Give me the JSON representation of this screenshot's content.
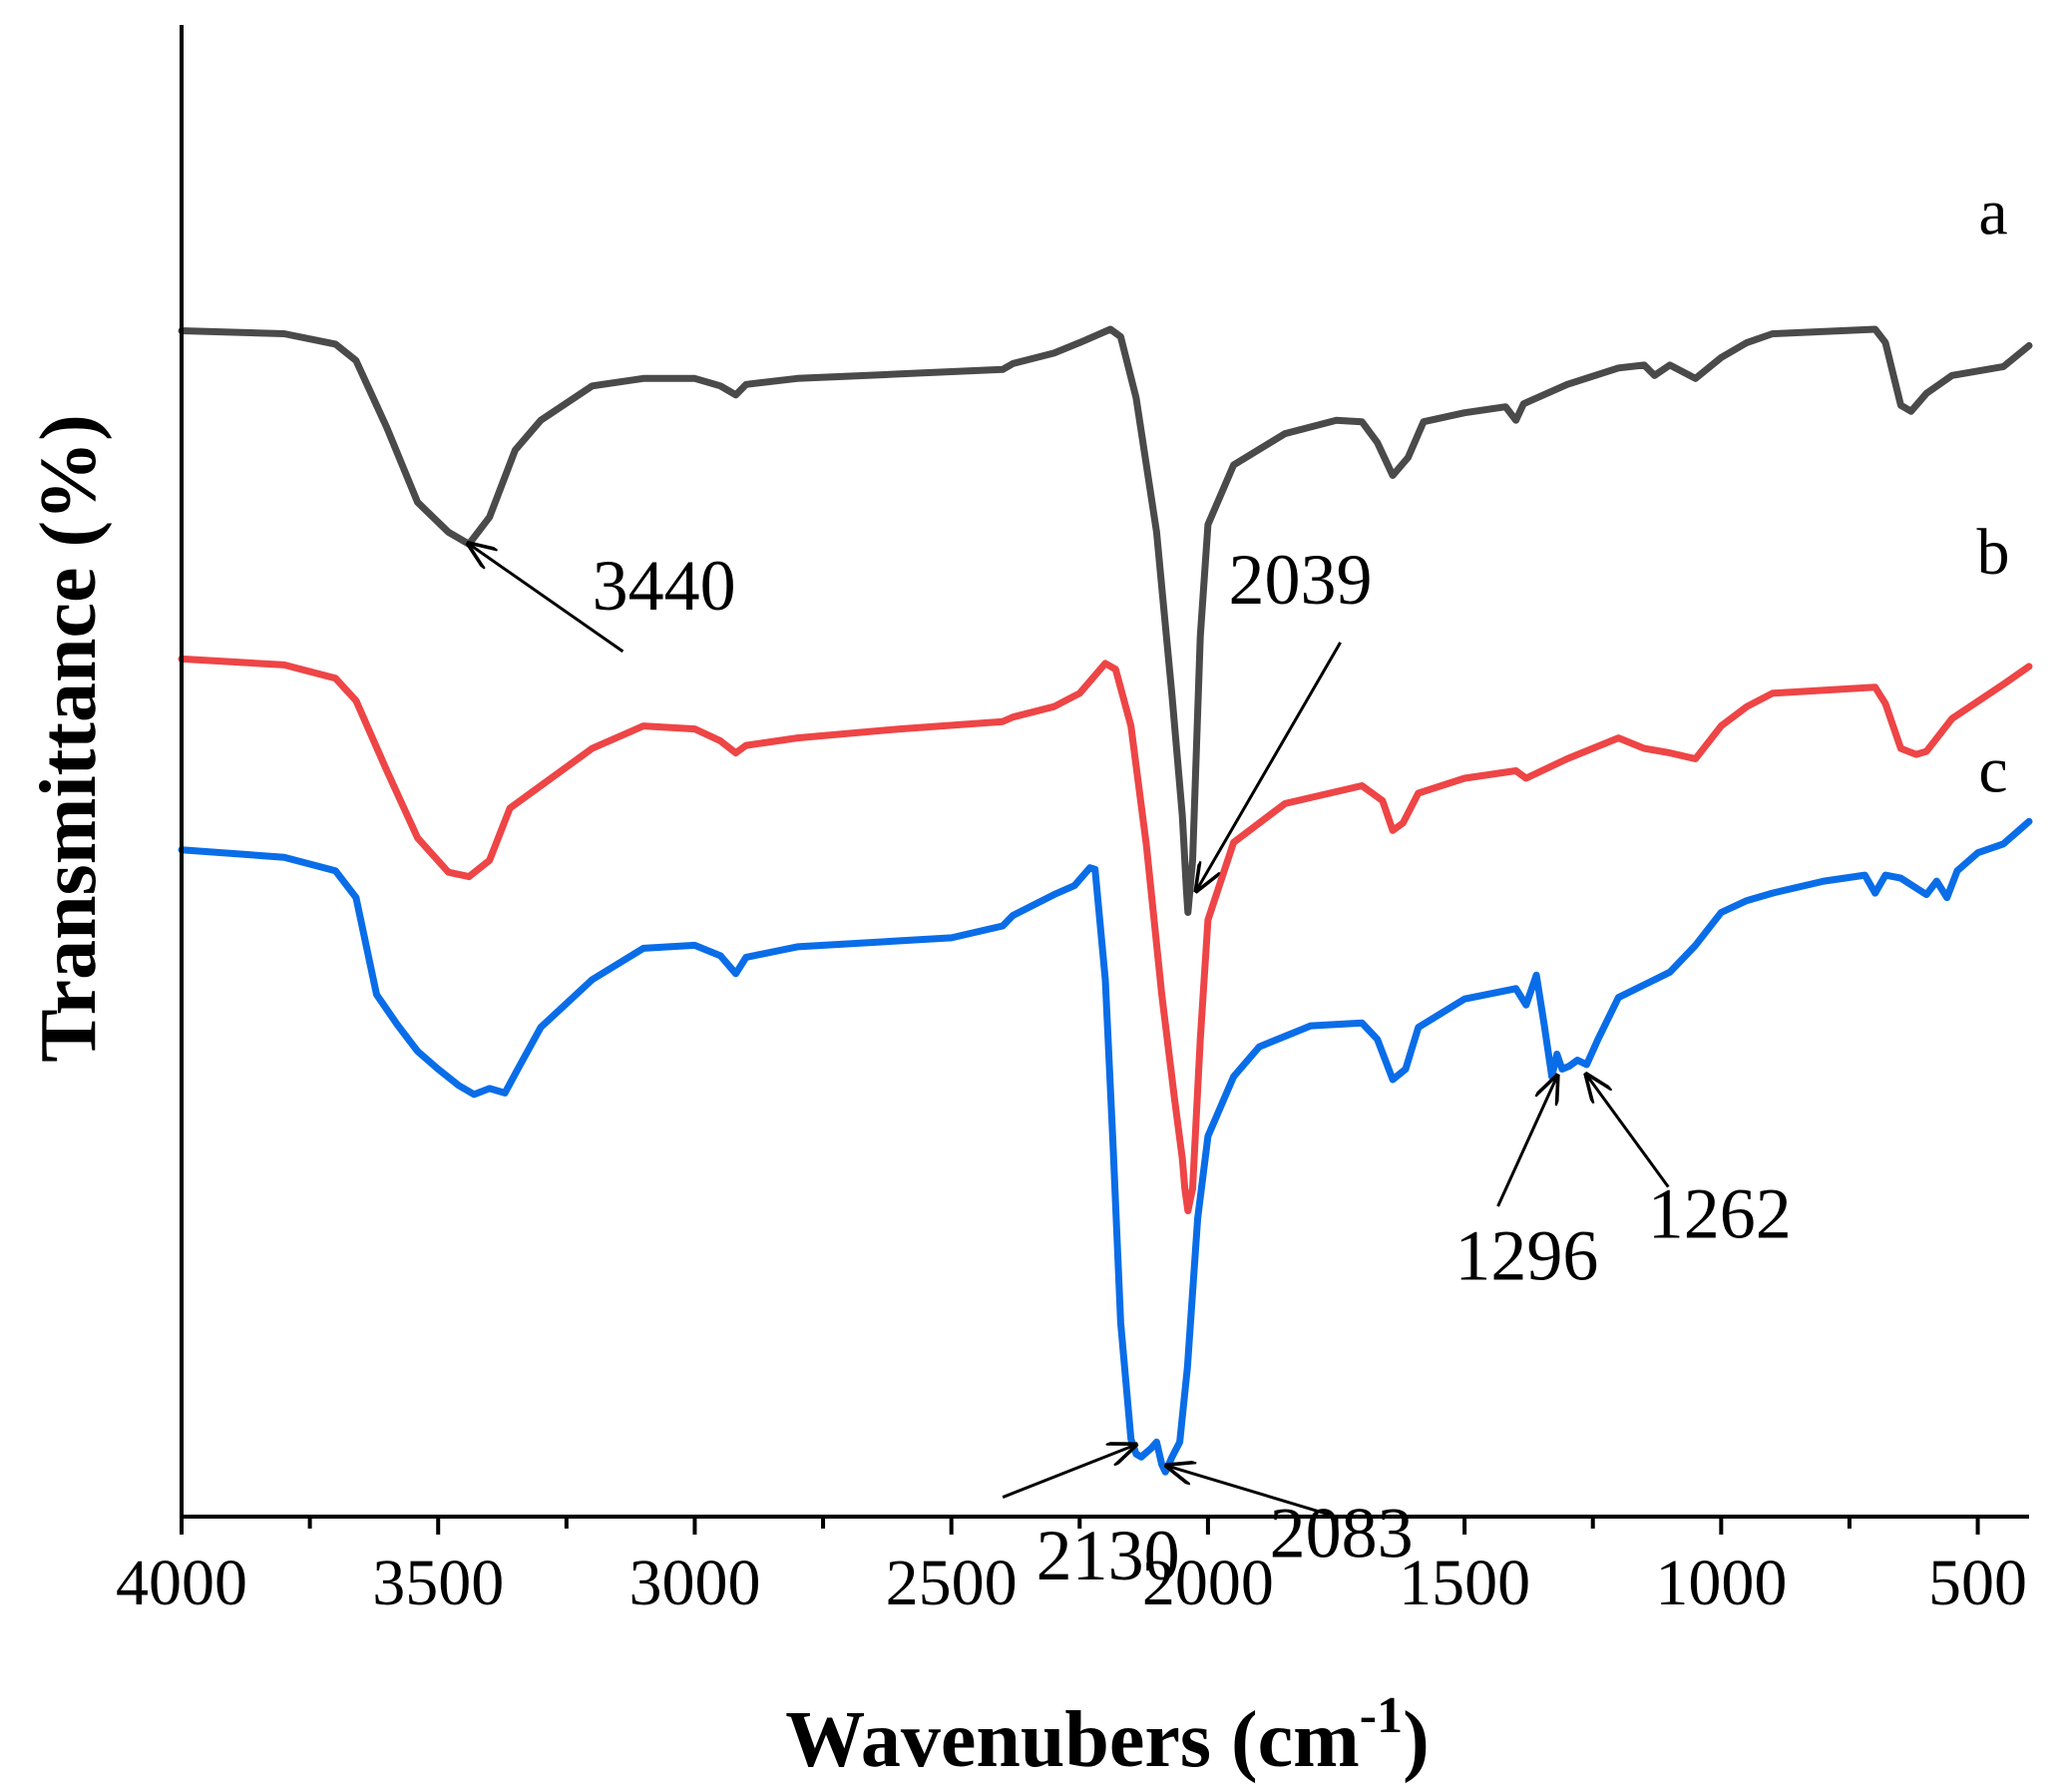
{
  "chart_data": {
    "type": "line",
    "title": "",
    "xlabel": "Wavenubers (cm",
    "xlabel_sup": "-1",
    "xlabel_end": ")",
    "ylabel": "Transmittance (%)",
    "xlim": [
      4000,
      400
    ],
    "ylim": [
      0,
      100
    ],
    "y_ticks_shown": false,
    "xticks": [
      {
        "value": 4000,
        "label": "4000"
      },
      {
        "value": 3500,
        "label": "3500"
      },
      {
        "value": 3000,
        "label": "3000"
      },
      {
        "value": 2500,
        "label": "2500"
      },
      {
        "value": 2000,
        "label": "2000"
      },
      {
        "value": 1500,
        "label": "1500"
      },
      {
        "value": 1000,
        "label": "1000"
      },
      {
        "value": 500,
        "label": "500"
      }
    ],
    "series": [
      {
        "name": "a",
        "color": "#4a4a4a",
        "points": [
          [
            4000,
            79.5
          ],
          [
            3800,
            79.3
          ],
          [
            3700,
            78.6
          ],
          [
            3660,
            77.5
          ],
          [
            3600,
            73
          ],
          [
            3540,
            68
          ],
          [
            3480,
            66
          ],
          [
            3440,
            65.2
          ],
          [
            3400,
            67
          ],
          [
            3350,
            71.5
          ],
          [
            3300,
            73.5
          ],
          [
            3200,
            75.8
          ],
          [
            3100,
            76.3
          ],
          [
            3000,
            76.3
          ],
          [
            2950,
            75.8
          ],
          [
            2920,
            75.2
          ],
          [
            2900,
            75.9
          ],
          [
            2800,
            76.3
          ],
          [
            2600,
            76.6
          ],
          [
            2400,
            76.9
          ],
          [
            2380,
            77.3
          ],
          [
            2300,
            78
          ],
          [
            2250,
            78.7
          ],
          [
            2190,
            79.6
          ],
          [
            2170,
            79.1
          ],
          [
            2140,
            75
          ],
          [
            2100,
            66
          ],
          [
            2070,
            55
          ],
          [
            2050,
            47
          ],
          [
            2042,
            42
          ],
          [
            2039,
            40.5
          ],
          [
            2030,
            44
          ],
          [
            2015,
            59
          ],
          [
            2000,
            66.5
          ],
          [
            1950,
            70.5
          ],
          [
            1850,
            72.6
          ],
          [
            1750,
            73.5
          ],
          [
            1700,
            73.4
          ],
          [
            1670,
            72
          ],
          [
            1640,
            69.8
          ],
          [
            1610,
            71
          ],
          [
            1580,
            73.4
          ],
          [
            1500,
            74
          ],
          [
            1420,
            74.4
          ],
          [
            1400,
            73.5
          ],
          [
            1385,
            74.6
          ],
          [
            1300,
            75.9
          ],
          [
            1200,
            77
          ],
          [
            1150,
            77.2
          ],
          [
            1130,
            76.5
          ],
          [
            1100,
            77.2
          ],
          [
            1050,
            76.3
          ],
          [
            1000,
            77.7
          ],
          [
            950,
            78.7
          ],
          [
            900,
            79.3
          ],
          [
            700,
            79.6
          ],
          [
            680,
            78.7
          ],
          [
            650,
            74.5
          ],
          [
            630,
            74.1
          ],
          [
            600,
            75.3
          ],
          [
            550,
            76.5
          ],
          [
            450,
            77.1
          ],
          [
            400,
            78.5
          ]
        ]
      },
      {
        "name": "b",
        "color": "#ee4546",
        "points": [
          [
            4000,
            57.5
          ],
          [
            3800,
            57.1
          ],
          [
            3700,
            56.2
          ],
          [
            3660,
            54.7
          ],
          [
            3600,
            50
          ],
          [
            3540,
            45.5
          ],
          [
            3480,
            43.2
          ],
          [
            3440,
            42.9
          ],
          [
            3400,
            44
          ],
          [
            3360,
            47.5
          ],
          [
            3300,
            49
          ],
          [
            3200,
            51.5
          ],
          [
            3100,
            53
          ],
          [
            3000,
            52.8
          ],
          [
            2950,
            52
          ],
          [
            2920,
            51.2
          ],
          [
            2900,
            51.7
          ],
          [
            2800,
            52.2
          ],
          [
            2600,
            52.8
          ],
          [
            2400,
            53.3
          ],
          [
            2380,
            53.6
          ],
          [
            2300,
            54.3
          ],
          [
            2250,
            55.2
          ],
          [
            2200,
            57.2
          ],
          [
            2180,
            56.8
          ],
          [
            2150,
            53
          ],
          [
            2120,
            45
          ],
          [
            2090,
            35
          ],
          [
            2065,
            28
          ],
          [
            2050,
            24
          ],
          [
            2045,
            22
          ],
          [
            2039,
            20.5
          ],
          [
            2030,
            22
          ],
          [
            2015,
            32
          ],
          [
            2000,
            40
          ],
          [
            1950,
            45.2
          ],
          [
            1850,
            47.8
          ],
          [
            1700,
            49
          ],
          [
            1660,
            48
          ],
          [
            1640,
            46
          ],
          [
            1620,
            46.5
          ],
          [
            1590,
            48.5
          ],
          [
            1500,
            49.5
          ],
          [
            1400,
            50
          ],
          [
            1380,
            49.5
          ],
          [
            1300,
            50.8
          ],
          [
            1200,
            52.2
          ],
          [
            1150,
            51.5
          ],
          [
            1100,
            51.2
          ],
          [
            1050,
            50.8
          ],
          [
            1000,
            53
          ],
          [
            950,
            54.3
          ],
          [
            900,
            55.2
          ],
          [
            700,
            55.6
          ],
          [
            680,
            54.5
          ],
          [
            650,
            51.5
          ],
          [
            620,
            51.1
          ],
          [
            600,
            51.3
          ],
          [
            550,
            53.5
          ],
          [
            450,
            55.8
          ],
          [
            400,
            57
          ]
        ]
      },
      {
        "name": "c",
        "color": "#0a6de8",
        "points": [
          [
            4000,
            44.7
          ],
          [
            3800,
            44.2
          ],
          [
            3700,
            43.3
          ],
          [
            3660,
            41.5
          ],
          [
            3620,
            35
          ],
          [
            3580,
            33
          ],
          [
            3540,
            31.2
          ],
          [
            3500,
            30
          ],
          [
            3460,
            28.9
          ],
          [
            3430,
            28.3
          ],
          [
            3400,
            28.7
          ],
          [
            3370,
            28.4
          ],
          [
            3340,
            30.3
          ],
          [
            3300,
            32.8
          ],
          [
            3200,
            36
          ],
          [
            3100,
            38.1
          ],
          [
            3000,
            38.3
          ],
          [
            2950,
            37.6
          ],
          [
            2920,
            36.4
          ],
          [
            2900,
            37.5
          ],
          [
            2800,
            38.2
          ],
          [
            2600,
            38.6
          ],
          [
            2500,
            38.8
          ],
          [
            2400,
            39.6
          ],
          [
            2380,
            40.3
          ],
          [
            2300,
            41.7
          ],
          [
            2260,
            42.3
          ],
          [
            2230,
            43.5
          ],
          [
            2220,
            43.4
          ],
          [
            2200,
            36
          ],
          [
            2185,
            25
          ],
          [
            2170,
            13
          ],
          [
            2150,
            5.2
          ],
          [
            2140,
            4.2
          ],
          [
            2130,
            4
          ],
          [
            2110,
            4.6
          ],
          [
            2100,
            5
          ],
          [
            2090,
            3.5
          ],
          [
            2083,
            3
          ],
          [
            2070,
            4
          ],
          [
            2055,
            5
          ],
          [
            2040,
            10
          ],
          [
            2020,
            20
          ],
          [
            2000,
            25.5
          ],
          [
            1950,
            29.5
          ],
          [
            1900,
            31.5
          ],
          [
            1800,
            32.9
          ],
          [
            1700,
            33.1
          ],
          [
            1670,
            32
          ],
          [
            1640,
            29.3
          ],
          [
            1615,
            30
          ],
          [
            1590,
            32.8
          ],
          [
            1500,
            34.7
          ],
          [
            1400,
            35.4
          ],
          [
            1380,
            34.3
          ],
          [
            1360,
            36.3
          ],
          [
            1345,
            33
          ],
          [
            1330,
            29.5
          ],
          [
            1320,
            31
          ],
          [
            1310,
            30
          ],
          [
            1296,
            30.2
          ],
          [
            1280,
            30.6
          ],
          [
            1262,
            30.3
          ],
          [
            1240,
            32
          ],
          [
            1200,
            34.8
          ],
          [
            1100,
            36.5
          ],
          [
            1050,
            38.3
          ],
          [
            1000,
            40.5
          ],
          [
            950,
            41.3
          ],
          [
            900,
            41.8
          ],
          [
            800,
            42.6
          ],
          [
            720,
            43
          ],
          [
            700,
            41.8
          ],
          [
            680,
            43
          ],
          [
            650,
            42.8
          ],
          [
            600,
            41.7
          ],
          [
            580,
            42.6
          ],
          [
            560,
            41.5
          ],
          [
            540,
            43.3
          ],
          [
            500,
            44.5
          ],
          [
            450,
            45.1
          ],
          [
            400,
            46.6
          ]
        ]
      }
    ],
    "series_labels": [
      {
        "text": "a",
        "x": 470,
        "y": 86
      },
      {
        "text": "b",
        "x": 470,
        "y": 63.2
      },
      {
        "text": "c",
        "x": 470,
        "y": 48.6
      }
    ],
    "annotations": [
      {
        "text": "3440",
        "text_x": 3060,
        "text_y": 60.8,
        "from_x": 3140,
        "from_y": 58,
        "to_x": 3440,
        "to_y": 65.2
      },
      {
        "text": "2039",
        "text_x": 1820,
        "text_y": 61.2,
        "from_x": 1742,
        "from_y": 58.6,
        "to_x": 2022,
        "to_y": 42
      },
      {
        "text": "2130",
        "text_x": 2195,
        "text_y": -4.2,
        "from_x": 2400,
        "from_y": 1.3,
        "to_x": 2142,
        "to_y": 4.8
      },
      {
        "text": "2083",
        "text_x": 1740,
        "text_y": -2.7,
        "from_x": 1760,
        "from_y": 0.1,
        "to_x": 2079,
        "to_y": 3.4
      },
      {
        "text": "1296",
        "text_x": 1379,
        "text_y": 15.9,
        "from_x": 1435,
        "from_y": 20.8,
        "to_x": 1320,
        "to_y": 29.5
      },
      {
        "text": "1262",
        "text_x": 1003,
        "text_y": 18.7,
        "from_x": 1103,
        "from_y": 22.1,
        "to_x": 1262,
        "to_y": 29.6
      }
    ]
  }
}
